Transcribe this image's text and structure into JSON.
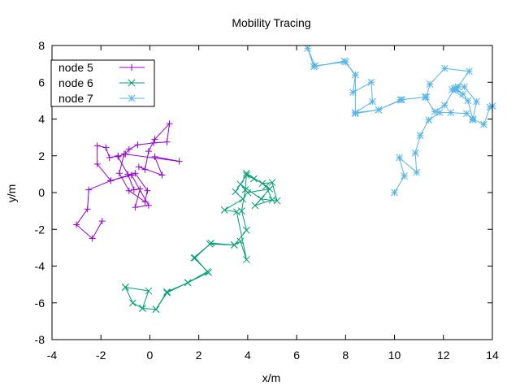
{
  "chart_data": {
    "type": "line",
    "title": "Mobility Tracing",
    "xlabel": "x/m",
    "ylabel": "y/m",
    "xlim": [
      -4,
      14
    ],
    "ylim": [
      -8,
      8
    ],
    "xticks": [
      "-4",
      "-2",
      "0",
      "2",
      "4",
      "6",
      "8",
      "10",
      "12",
      "14"
    ],
    "yticks": [
      "-8",
      "-6",
      "-4",
      "-2",
      "0",
      "2",
      "4",
      "6",
      "8"
    ],
    "grid": false,
    "legend_position": "top-left",
    "series": [
      {
        "name": "node 5",
        "color": "#9400d3",
        "marker": "plus",
        "points": [
          [
            -1.95,
            -1.55
          ],
          [
            -2.35,
            -2.5
          ],
          [
            -3.0,
            -1.75
          ],
          [
            -2.55,
            -0.9
          ],
          [
            -2.5,
            0.15
          ],
          [
            -1.6,
            0.65
          ],
          [
            -0.75,
            0.95
          ],
          [
            -0.05,
            -0.7
          ],
          [
            -0.6,
            -0.8
          ],
          [
            -0.4,
            0.2
          ],
          [
            -0.65,
            0.15
          ],
          [
            -0.9,
            1.0
          ],
          [
            -1.3,
            1.95
          ],
          [
            -1.0,
            2.1
          ],
          [
            -0.85,
            2.35
          ],
          [
            -0.5,
            2.6
          ],
          [
            0.15,
            2.7
          ],
          [
            0.7,
            2.75
          ],
          [
            0.8,
            3.75
          ],
          [
            0.2,
            2.9
          ],
          [
            -0.05,
            2.25
          ],
          [
            -0.2,
            1.25
          ],
          [
            -0.45,
            1.4
          ],
          [
            0.5,
            0.95
          ],
          [
            0.2,
            1.95
          ],
          [
            1.2,
            1.7
          ],
          [
            -1.05,
            2.1
          ],
          [
            -1.25,
            1.05
          ],
          [
            -0.85,
            0.1
          ],
          [
            -0.2,
            -0.5
          ],
          [
            -0.1,
            0.1
          ],
          [
            -0.6,
            1.05
          ],
          [
            -1.6,
            0.65
          ],
          [
            -2.15,
            1.55
          ],
          [
            -2.15,
            2.55
          ],
          [
            -1.8,
            2.45
          ],
          [
            -1.65,
            1.9
          ],
          [
            -1.3,
            2.0
          ]
        ]
      },
      {
        "name": "node 6",
        "color": "#009e73",
        "marker": "cross",
        "points": [
          [
            -1.0,
            -5.15
          ],
          [
            -0.7,
            -6.0
          ],
          [
            -0.3,
            -6.3
          ],
          [
            0.25,
            -6.35
          ],
          [
            0.7,
            -5.4
          ],
          [
            1.55,
            -4.9
          ],
          [
            2.4,
            -4.35
          ],
          [
            1.8,
            -3.55
          ],
          [
            2.5,
            -2.75
          ],
          [
            3.45,
            -2.85
          ],
          [
            3.7,
            -2.65
          ],
          [
            3.95,
            -3.65
          ],
          [
            3.55,
            -1.05
          ],
          [
            3.05,
            -0.95
          ],
          [
            3.8,
            -0.35
          ],
          [
            3.5,
            0.05
          ],
          [
            3.95,
            0.95
          ],
          [
            4.25,
            0.75
          ],
          [
            4.6,
            0.5
          ],
          [
            5.0,
            0.55
          ],
          [
            5.2,
            -0.45
          ],
          [
            4.55,
            -0.35
          ],
          [
            3.7,
            0.45
          ],
          [
            4.0,
            0.0
          ],
          [
            4.9,
            0.2
          ],
          [
            4.3,
            -0.7
          ],
          [
            5.0,
            -0.4
          ],
          [
            4.75,
            0.35
          ],
          [
            3.95,
            1.05
          ],
          [
            3.9,
            0.15
          ],
          [
            3.75,
            -1.0
          ],
          [
            3.95,
            -2.05
          ],
          [
            3.45,
            -2.85
          ],
          [
            2.45,
            -2.8
          ],
          [
            1.85,
            -3.55
          ],
          [
            2.35,
            -4.3
          ],
          [
            1.55,
            -4.9
          ],
          [
            0.7,
            -5.45
          ],
          [
            0.25,
            -6.35
          ],
          [
            -0.3,
            -6.3
          ],
          [
            -0.05,
            -5.35
          ],
          [
            -1.0,
            -5.15
          ]
        ]
      },
      {
        "name": "node 7",
        "color": "#56b4e9",
        "marker": "star",
        "points": [
          [
            10.0,
            0.0
          ],
          [
            10.4,
            0.9
          ],
          [
            10.2,
            1.9
          ],
          [
            10.9,
            1.1
          ],
          [
            10.85,
            2.15
          ],
          [
            11.05,
            3.1
          ],
          [
            11.4,
            3.95
          ],
          [
            11.85,
            4.35
          ],
          [
            12.3,
            4.35
          ],
          [
            12.95,
            4.3
          ],
          [
            13.2,
            3.95
          ],
          [
            13.35,
            4.95
          ],
          [
            12.85,
            5.75
          ],
          [
            12.6,
            5.75
          ],
          [
            12.45,
            5.65
          ],
          [
            12.05,
            4.75
          ],
          [
            11.65,
            4.4
          ],
          [
            11.25,
            5.2
          ],
          [
            10.25,
            5.05
          ],
          [
            9.35,
            4.5
          ],
          [
            8.4,
            4.35
          ],
          [
            9.1,
            4.95
          ],
          [
            9.05,
            6.0
          ],
          [
            8.3,
            5.45
          ],
          [
            8.4,
            6.4
          ],
          [
            7.95,
            7.15
          ],
          [
            6.7,
            6.85
          ],
          [
            6.45,
            7.85
          ],
          [
            6.75,
            6.9
          ],
          [
            8.0,
            7.1
          ],
          [
            8.4,
            6.4
          ],
          [
            8.4,
            4.3
          ],
          [
            9.35,
            4.5
          ],
          [
            10.3,
            5.05
          ],
          [
            11.3,
            5.2
          ],
          [
            11.45,
            5.9
          ],
          [
            12.05,
            6.75
          ],
          [
            13.05,
            6.6
          ],
          [
            12.5,
            5.6
          ],
          [
            12.8,
            5.35
          ],
          [
            12.5,
            5.7
          ],
          [
            12.35,
            5.6
          ],
          [
            13.0,
            5.0
          ],
          [
            13.2,
            4.0
          ],
          [
            13.65,
            3.7
          ],
          [
            13.9,
            4.65
          ],
          [
            14.0,
            4.7
          ]
        ]
      }
    ]
  }
}
